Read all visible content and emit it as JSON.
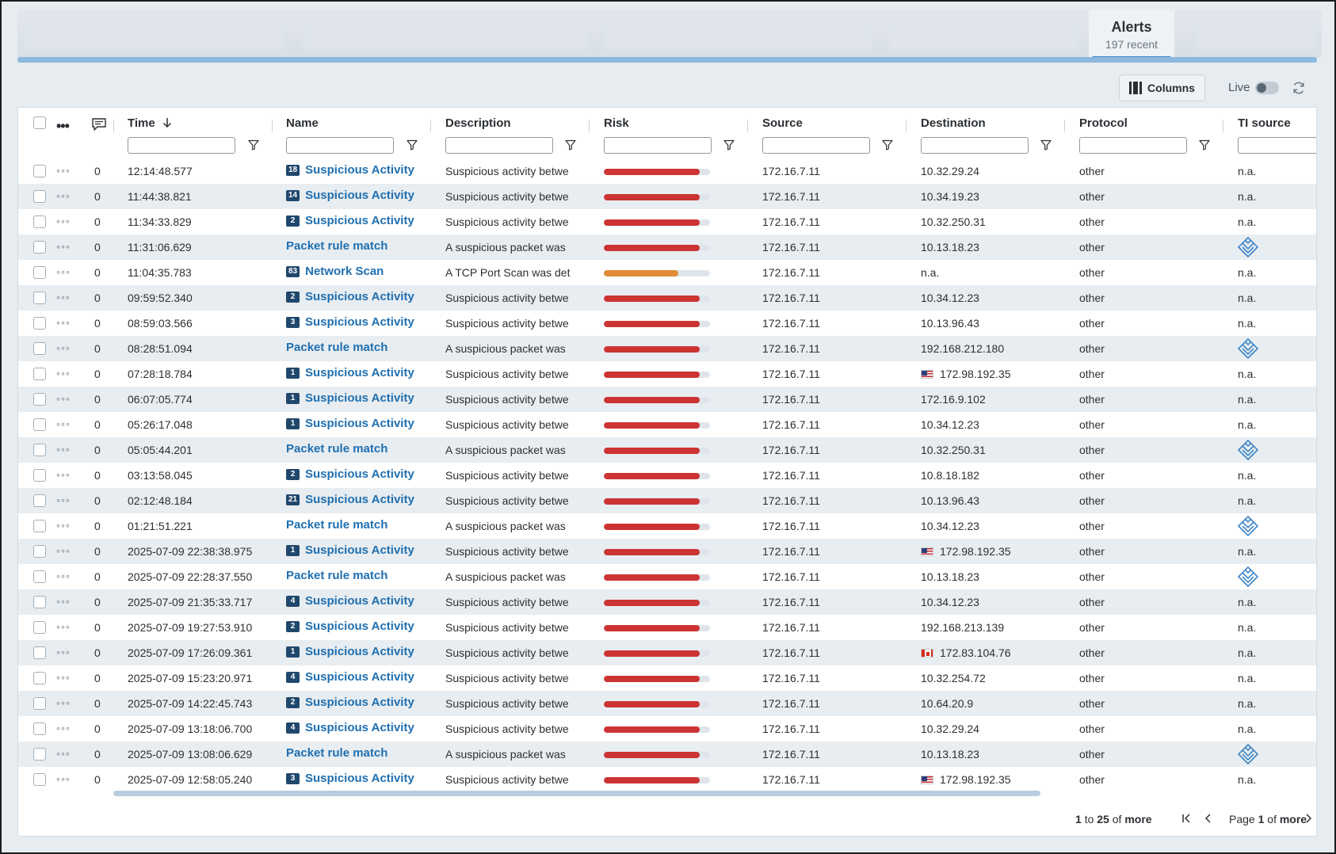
{
  "tabs": {
    "alerts_title": "Alerts",
    "alerts_subtitle": "197 recent"
  },
  "toolbar": {
    "columns_label": "Columns",
    "live_label": "Live",
    "live_on": false
  },
  "columns": {
    "time": "Time",
    "name": "Name",
    "description": "Description",
    "risk": "Risk",
    "source": "Source",
    "destination": "Destination",
    "protocol": "Protocol",
    "ti_source": "TI source"
  },
  "colors": {
    "accent": "#3f86c6",
    "link": "#1f6fb0",
    "risk_high": "#cc3333",
    "risk_medium": "#e18a37",
    "badge": "#20486c"
  },
  "rows": [
    {
      "count": "0",
      "time": "12:14:48.577",
      "badge": "18",
      "name": "Suspicious Activity",
      "desc": "Suspicious activity betwe",
      "risk": 0.9,
      "risk_level": "high",
      "src": "172.16.7.11",
      "flag": "",
      "dst": "10.32.29.24",
      "proto": "other",
      "ti": "n.a.",
      "ti_icon": false
    },
    {
      "count": "0",
      "time": "11:44:38.821",
      "badge": "14",
      "name": "Suspicious Activity",
      "desc": "Suspicious activity betwe",
      "risk": 0.9,
      "risk_level": "high",
      "src": "172.16.7.11",
      "flag": "",
      "dst": "10.34.19.23",
      "proto": "other",
      "ti": "n.a.",
      "ti_icon": false
    },
    {
      "count": "0",
      "time": "11:34:33.829",
      "badge": "2",
      "name": "Suspicious Activity",
      "desc": "Suspicious activity betwe",
      "risk": 0.9,
      "risk_level": "high",
      "src": "172.16.7.11",
      "flag": "",
      "dst": "10.32.250.31",
      "proto": "other",
      "ti": "n.a.",
      "ti_icon": false
    },
    {
      "count": "0",
      "time": "11:31:06.629",
      "badge": "",
      "name": "Packet rule match",
      "desc": "A suspicious packet was",
      "risk": 0.9,
      "risk_level": "high",
      "src": "172.16.7.11",
      "flag": "",
      "dst": "10.13.18.23",
      "proto": "other",
      "ti": "",
      "ti_icon": true
    },
    {
      "count": "0",
      "time": "11:04:35.783",
      "badge": "83",
      "name": "Network Scan",
      "desc": "A TCP Port Scan was det",
      "risk": 0.7,
      "risk_level": "medium",
      "src": "172.16.7.11",
      "flag": "",
      "dst": "n.a.",
      "proto": "other",
      "ti": "n.a.",
      "ti_icon": false
    },
    {
      "count": "0",
      "time": "09:59:52.340",
      "badge": "2",
      "name": "Suspicious Activity",
      "desc": "Suspicious activity betwe",
      "risk": 0.9,
      "risk_level": "high",
      "src": "172.16.7.11",
      "flag": "",
      "dst": "10.34.12.23",
      "proto": "other",
      "ti": "n.a.",
      "ti_icon": false
    },
    {
      "count": "0",
      "time": "08:59:03.566",
      "badge": "3",
      "name": "Suspicious Activity",
      "desc": "Suspicious activity betwe",
      "risk": 0.9,
      "risk_level": "high",
      "src": "172.16.7.11",
      "flag": "",
      "dst": "10.13.96.43",
      "proto": "other",
      "ti": "n.a.",
      "ti_icon": false
    },
    {
      "count": "0",
      "time": "08:28:51.094",
      "badge": "",
      "name": "Packet rule match",
      "desc": "A suspicious packet was",
      "risk": 0.9,
      "risk_level": "high",
      "src": "172.16.7.11",
      "flag": "",
      "dst": "192.168.212.180",
      "proto": "other",
      "ti": "",
      "ti_icon": true
    },
    {
      "count": "0",
      "time": "07:28:18.784",
      "badge": "1",
      "name": "Suspicious Activity",
      "desc": "Suspicious activity betwe",
      "risk": 0.9,
      "risk_level": "high",
      "src": "172.16.7.11",
      "flag": "us",
      "dst": "172.98.192.35",
      "proto": "other",
      "ti": "n.a.",
      "ti_icon": false
    },
    {
      "count": "0",
      "time": "06:07:05.774",
      "badge": "1",
      "name": "Suspicious Activity",
      "desc": "Suspicious activity betwe",
      "risk": 0.9,
      "risk_level": "high",
      "src": "172.16.7.11",
      "flag": "",
      "dst": "172.16.9.102",
      "proto": "other",
      "ti": "n.a.",
      "ti_icon": false
    },
    {
      "count": "0",
      "time": "05:26:17.048",
      "badge": "1",
      "name": "Suspicious Activity",
      "desc": "Suspicious activity betwe",
      "risk": 0.9,
      "risk_level": "high",
      "src": "172.16.7.11",
      "flag": "",
      "dst": "10.34.12.23",
      "proto": "other",
      "ti": "n.a.",
      "ti_icon": false
    },
    {
      "count": "0",
      "time": "05:05:44.201",
      "badge": "",
      "name": "Packet rule match",
      "desc": "A suspicious packet was",
      "risk": 0.9,
      "risk_level": "high",
      "src": "172.16.7.11",
      "flag": "",
      "dst": "10.32.250.31",
      "proto": "other",
      "ti": "",
      "ti_icon": true
    },
    {
      "count": "0",
      "time": "03:13:58.045",
      "badge": "2",
      "name": "Suspicious Activity",
      "desc": "Suspicious activity betwe",
      "risk": 0.9,
      "risk_level": "high",
      "src": "172.16.7.11",
      "flag": "",
      "dst": "10.8.18.182",
      "proto": "other",
      "ti": "n.a.",
      "ti_icon": false
    },
    {
      "count": "0",
      "time": "02:12:48.184",
      "badge": "21",
      "name": "Suspicious Activity",
      "desc": "Suspicious activity betwe",
      "risk": 0.9,
      "risk_level": "high",
      "src": "172.16.7.11",
      "flag": "",
      "dst": "10.13.96.43",
      "proto": "other",
      "ti": "n.a.",
      "ti_icon": false
    },
    {
      "count": "0",
      "time": "01:21:51.221",
      "badge": "",
      "name": "Packet rule match",
      "desc": "A suspicious packet was",
      "risk": 0.9,
      "risk_level": "high",
      "src": "172.16.7.11",
      "flag": "",
      "dst": "10.34.12.23",
      "proto": "other",
      "ti": "",
      "ti_icon": true
    },
    {
      "count": "0",
      "time": "2025-07-09 22:38:38.975",
      "badge": "1",
      "name": "Suspicious Activity",
      "desc": "Suspicious activity betwe",
      "risk": 0.9,
      "risk_level": "high",
      "src": "172.16.7.11",
      "flag": "us",
      "dst": "172.98.192.35",
      "proto": "other",
      "ti": "n.a.",
      "ti_icon": false
    },
    {
      "count": "0",
      "time": "2025-07-09 22:28:37.550",
      "badge": "",
      "name": "Packet rule match",
      "desc": "A suspicious packet was",
      "risk": 0.9,
      "risk_level": "high",
      "src": "172.16.7.11",
      "flag": "",
      "dst": "10.13.18.23",
      "proto": "other",
      "ti": "",
      "ti_icon": true
    },
    {
      "count": "0",
      "time": "2025-07-09 21:35:33.717",
      "badge": "4",
      "name": "Suspicious Activity",
      "desc": "Suspicious activity betwe",
      "risk": 0.9,
      "risk_level": "high",
      "src": "172.16.7.11",
      "flag": "",
      "dst": "10.34.12.23",
      "proto": "other",
      "ti": "n.a.",
      "ti_icon": false
    },
    {
      "count": "0",
      "time": "2025-07-09 19:27:53.910",
      "badge": "2",
      "name": "Suspicious Activity",
      "desc": "Suspicious activity betwe",
      "risk": 0.9,
      "risk_level": "high",
      "src": "172.16.7.11",
      "flag": "",
      "dst": "192.168.213.139",
      "proto": "other",
      "ti": "n.a.",
      "ti_icon": false
    },
    {
      "count": "0",
      "time": "2025-07-09 17:26:09.361",
      "badge": "1",
      "name": "Suspicious Activity",
      "desc": "Suspicious activity betwe",
      "risk": 0.9,
      "risk_level": "high",
      "src": "172.16.7.11",
      "flag": "ca",
      "dst": "172.83.104.76",
      "proto": "other",
      "ti": "n.a.",
      "ti_icon": false
    },
    {
      "count": "0",
      "time": "2025-07-09 15:23:20.971",
      "badge": "4",
      "name": "Suspicious Activity",
      "desc": "Suspicious activity betwe",
      "risk": 0.9,
      "risk_level": "high",
      "src": "172.16.7.11",
      "flag": "",
      "dst": "10.32.254.72",
      "proto": "other",
      "ti": "n.a.",
      "ti_icon": false
    },
    {
      "count": "0",
      "time": "2025-07-09 14:22:45.743",
      "badge": "2",
      "name": "Suspicious Activity",
      "desc": "Suspicious activity betwe",
      "risk": 0.9,
      "risk_level": "high",
      "src": "172.16.7.11",
      "flag": "",
      "dst": "10.64.20.9",
      "proto": "other",
      "ti": "n.a.",
      "ti_icon": false
    },
    {
      "count": "0",
      "time": "2025-07-09 13:18:06.700",
      "badge": "4",
      "name": "Suspicious Activity",
      "desc": "Suspicious activity betwe",
      "risk": 0.9,
      "risk_level": "high",
      "src": "172.16.7.11",
      "flag": "",
      "dst": "10.32.29.24",
      "proto": "other",
      "ti": "n.a.",
      "ti_icon": false
    },
    {
      "count": "0",
      "time": "2025-07-09 13:08:06.629",
      "badge": "",
      "name": "Packet rule match",
      "desc": "A suspicious packet was",
      "risk": 0.9,
      "risk_level": "high",
      "src": "172.16.7.11",
      "flag": "",
      "dst": "10.13.18.23",
      "proto": "other",
      "ti": "",
      "ti_icon": true
    },
    {
      "count": "0",
      "time": "2025-07-09 12:58:05.240",
      "badge": "3",
      "name": "Suspicious Activity",
      "desc": "Suspicious activity betwe",
      "risk": 0.9,
      "risk_level": "high",
      "src": "172.16.7.11",
      "flag": "us",
      "dst": "172.98.192.35",
      "proto": "other",
      "ti": "n.a.",
      "ti_icon": false
    }
  ],
  "pager": {
    "from": "1",
    "to_word": "to",
    "to": "25",
    "of_word": "of",
    "more": "more",
    "page_word": "Page",
    "page": "1",
    "page_of": "of",
    "page_more": "more"
  }
}
